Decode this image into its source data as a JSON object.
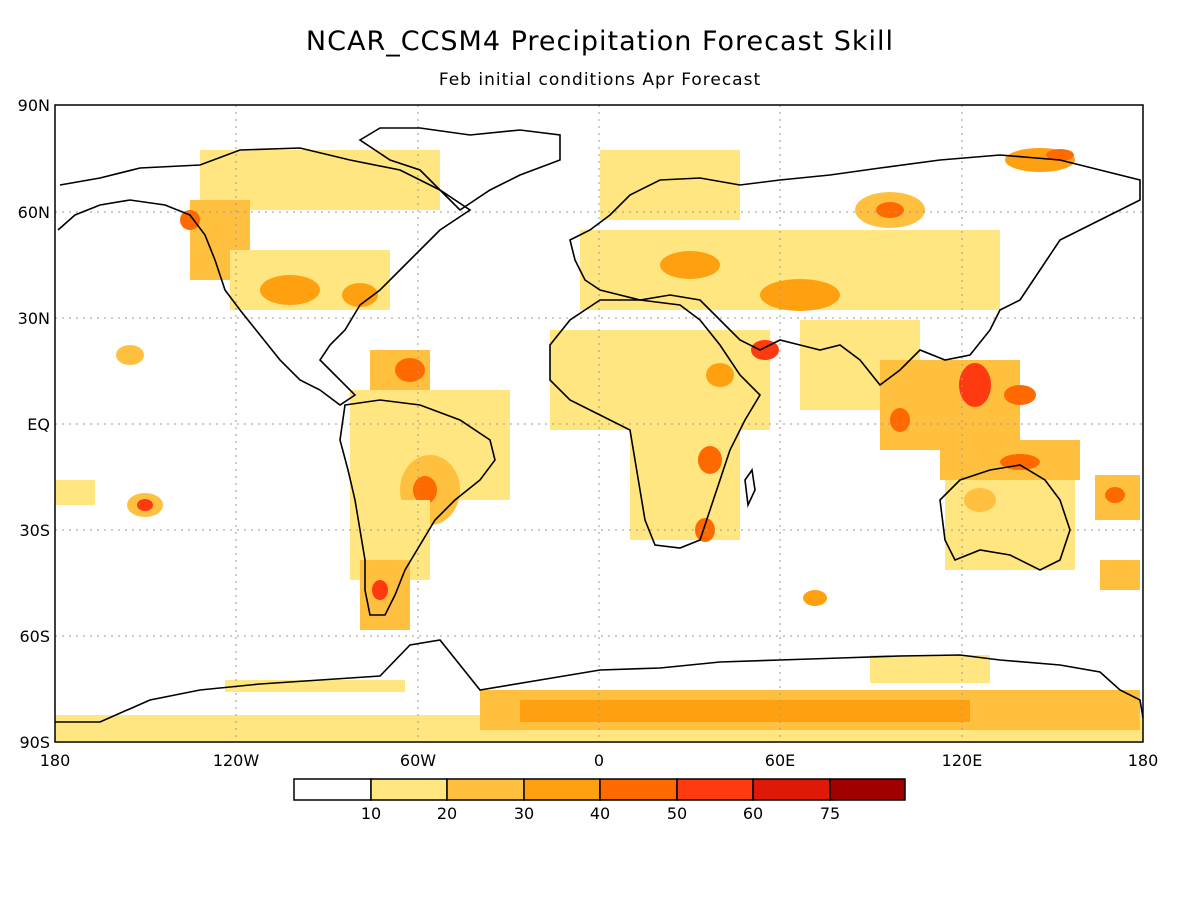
{
  "title": "NCAR_CCSM4 Precipitation Forecast Skill",
  "subtitle": "Feb initial conditions  Apr Forecast",
  "lat_ticks": [
    "90N",
    "60N",
    "30N",
    "EQ",
    "30S",
    "60S",
    "90S"
  ],
  "lon_ticks": [
    "180",
    "120W",
    "60W",
    "0",
    "60E",
    "120E",
    "180"
  ],
  "colorbar": {
    "labels": [
      "10",
      "20",
      "30",
      "40",
      "50",
      "60",
      "75"
    ],
    "colors": [
      "#ffffff",
      "#ffe680",
      "#ffc040",
      "#ffa010",
      "#ff6a00",
      "#ff3a10",
      "#e01808",
      "#a00000"
    ]
  },
  "colors": {
    "coast": "#000000",
    "grid": "#9a9a9a"
  },
  "chart_data": {
    "type": "heatmap",
    "title": "NCAR_CCSM4 Precipitation Forecast Skill",
    "subtitle": "Feb initial conditions  Apr Forecast",
    "x_range": [
      -180,
      180
    ],
    "y_range": [
      -90,
      90
    ],
    "x_ticks": [
      "180",
      "120W",
      "60W",
      "0",
      "60E",
      "120E",
      "180"
    ],
    "y_ticks": [
      "90N",
      "60N",
      "30N",
      "EQ",
      "30S",
      "60S",
      "90S"
    ],
    "levels": [
      10,
      20,
      30,
      40,
      50,
      60,
      75
    ],
    "grid": true
  }
}
